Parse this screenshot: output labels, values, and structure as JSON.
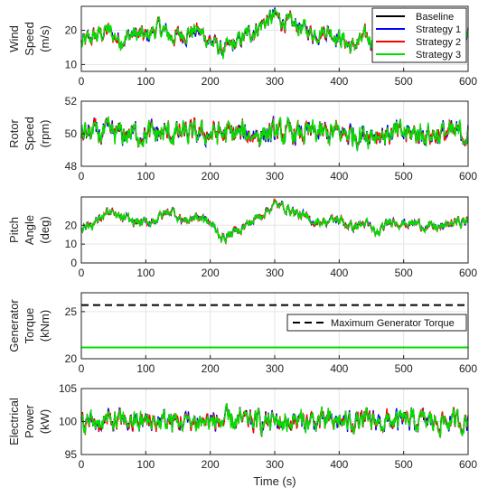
{
  "chart_data": [
    {
      "type": "line",
      "ylabel": [
        "Wind",
        "Speed",
        "(m/s)"
      ],
      "xlim": [
        0,
        600
      ],
      "ylim": [
        8,
        27
      ],
      "yticks": [
        10,
        20
      ],
      "xticks": [
        0,
        100,
        200,
        300,
        400,
        500,
        600
      ],
      "legend": {
        "position": "top-right",
        "entries": [
          "Baseline",
          "Strategy 1",
          "Strategy 2",
          "Strategy 3"
        ]
      },
      "series": [
        {
          "name": "Baseline",
          "color": "#000000",
          "base": 18.5,
          "noise": 2.5,
          "anchors": [
            [
              0,
              16
            ],
            [
              20,
              18
            ],
            [
              40,
              20
            ],
            [
              60,
              17
            ],
            [
              80,
              19
            ],
            [
              100,
              18
            ],
            [
              120,
              21
            ],
            [
              140,
              18
            ],
            [
              160,
              19
            ],
            [
              180,
              20
            ],
            [
              200,
              17
            ],
            [
              220,
              14
            ],
            [
              240,
              16
            ],
            [
              260,
              19
            ],
            [
              280,
              22
            ],
            [
              300,
              24
            ],
            [
              320,
              22
            ],
            [
              340,
              21
            ],
            [
              360,
              19
            ],
            [
              380,
              20
            ],
            [
              400,
              18
            ],
            [
              420,
              15
            ],
            [
              440,
              18
            ],
            [
              460,
              16
            ],
            [
              480,
              17
            ],
            [
              500,
              16
            ],
            [
              520,
              16
            ],
            [
              540,
              17
            ],
            [
              560,
              18
            ],
            [
              580,
              17
            ],
            [
              600,
              18
            ]
          ]
        },
        {
          "name": "Strategy 1",
          "color": "#0000ff"
        },
        {
          "name": "Strategy 2",
          "color": "#ff0000"
        },
        {
          "name": "Strategy 3",
          "color": "#00e000"
        }
      ]
    },
    {
      "type": "line",
      "ylabel": [
        "Rotor",
        "Speed",
        "(rpm)"
      ],
      "xlim": [
        0,
        600
      ],
      "ylim": [
        48,
        52
      ],
      "yticks": [
        48,
        50,
        52
      ],
      "xticks": [
        0,
        100,
        200,
        300,
        400,
        500,
        600
      ],
      "series": [
        {
          "name": "Baseline",
          "color": "#000000",
          "base": 50.0,
          "noise": 0.7
        },
        {
          "name": "Strategy 1",
          "color": "#0000ff"
        },
        {
          "name": "Strategy 2",
          "color": "#ff0000"
        },
        {
          "name": "Strategy 3",
          "color": "#00e000"
        }
      ]
    },
    {
      "type": "line",
      "ylabel": [
        "Pitch",
        "Angle",
        "(deg)"
      ],
      "xlim": [
        0,
        600
      ],
      "ylim": [
        0,
        35
      ],
      "yticks": [
        0,
        10,
        20
      ],
      "xticks": [
        0,
        100,
        200,
        300,
        400,
        500,
        600
      ],
      "series": [
        {
          "name": "Baseline",
          "color": "#000000",
          "base": 20,
          "noise": 2.5,
          "anchors": [
            [
              0,
              19
            ],
            [
              20,
              21
            ],
            [
              40,
              27
            ],
            [
              60,
              24
            ],
            [
              80,
              22
            ],
            [
              100,
              21
            ],
            [
              120,
              24
            ],
            [
              140,
              28
            ],
            [
              160,
              22
            ],
            [
              180,
              25
            ],
            [
              200,
              21
            ],
            [
              220,
              13
            ],
            [
              240,
              17
            ],
            [
              260,
              21
            ],
            [
              280,
              26
            ],
            [
              300,
              31
            ],
            [
              320,
              29
            ],
            [
              340,
              25
            ],
            [
              360,
              22
            ],
            [
              380,
              22
            ],
            [
              400,
              23
            ],
            [
              420,
              19
            ],
            [
              440,
              21
            ],
            [
              460,
              15
            ],
            [
              480,
              23
            ],
            [
              500,
              21
            ],
            [
              520,
              21
            ],
            [
              540,
              19
            ],
            [
              560,
              19
            ],
            [
              580,
              22
            ],
            [
              600,
              22
            ]
          ]
        },
        {
          "name": "Strategy 1",
          "color": "#0000ff"
        },
        {
          "name": "Strategy 2",
          "color": "#ff0000"
        },
        {
          "name": "Strategy 3",
          "color": "#00e000"
        }
      ]
    },
    {
      "type": "line",
      "ylabel": [
        "Generator",
        "Torque",
        "(kNm)"
      ],
      "xlim": [
        0,
        600
      ],
      "ylim": [
        20,
        27
      ],
      "yticks": [
        20,
        25
      ],
      "xticks": [
        0,
        100,
        200,
        300,
        400,
        500,
        600
      ],
      "legend": {
        "position": "right",
        "entries": [
          "Maximum Generator Torque"
        ]
      },
      "series": [
        {
          "name": "Maximum Generator Torque",
          "color": "#000000",
          "dashed": true,
          "constant": 25.7
        },
        {
          "name": "Baseline",
          "color": "#000000",
          "constant": 21.2
        },
        {
          "name": "Strategy 1",
          "color": "#0000ff",
          "constant": 21.2
        },
        {
          "name": "Strategy 2",
          "color": "#ff0000",
          "constant": 21.2
        },
        {
          "name": "Strategy 3",
          "color": "#00e000",
          "constant": 21.2
        }
      ]
    },
    {
      "type": "line",
      "ylabel": [
        "Electrical",
        "Power",
        "(kW)"
      ],
      "xlim": [
        0,
        600
      ],
      "ylim": [
        95,
        105
      ],
      "yticks": [
        95,
        100,
        105
      ],
      "xticks": [
        0,
        100,
        200,
        300,
        400,
        500,
        600
      ],
      "xlabel": "Time (s)",
      "series": [
        {
          "name": "Baseline",
          "color": "#000000",
          "base": 100.0,
          "noise": 1.6
        },
        {
          "name": "Strategy 1",
          "color": "#0000ff"
        },
        {
          "name": "Strategy 2",
          "color": "#ff0000"
        },
        {
          "name": "Strategy 3",
          "color": "#00e000"
        }
      ]
    }
  ]
}
